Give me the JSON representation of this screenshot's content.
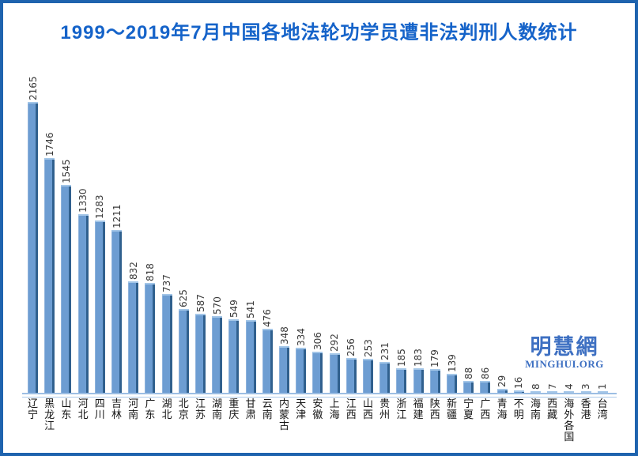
{
  "chart_data": {
    "type": "bar",
    "title": "1999～2019年7月中国各地法轮功学员遭非法判刑人数统计",
    "categories": [
      "辽宁",
      "黑龙江",
      "山东",
      "河北",
      "四川",
      "吉林",
      "河南",
      "广东",
      "湖北",
      "北京",
      "江苏",
      "湖南",
      "重庆",
      "甘肃",
      "云南",
      "内蒙古",
      "天津",
      "安徽",
      "上海",
      "江西",
      "山西",
      "贵州",
      "浙江",
      "福建",
      "陕西",
      "新疆",
      "宁夏",
      "广西",
      "青海",
      "不明",
      "海南",
      "西藏",
      "海外各国",
      "香港",
      "台湾"
    ],
    "values": [
      2165,
      1746,
      1545,
      1330,
      1283,
      1211,
      832,
      818,
      737,
      625,
      587,
      570,
      549,
      541,
      476,
      348,
      334,
      306,
      292,
      256,
      253,
      231,
      185,
      183,
      179,
      139,
      88,
      86,
      29,
      16,
      8,
      7,
      4,
      3,
      1
    ],
    "xlabel": "",
    "ylabel": "",
    "ylim": [
      0,
      2300
    ],
    "grid": false,
    "legend": "none",
    "data_labels": "rotated-90-above-bars",
    "x_tick_orientation": "vertical-stacked",
    "colors": {
      "bar_face": "#6D9DD2",
      "bar_side": "#30608E",
      "bar_top_highlight": "#A3C6E8",
      "bar_left_highlight": "#8FB3DC",
      "title": "#1563C9",
      "value_label": "#3A3A3A",
      "axis_label": "#151515",
      "floor_line": "#9CBEE3",
      "frame_border": "#1E63AE"
    }
  },
  "watermark": {
    "site_name": "明慧網",
    "site_url": "MINGHUI.ORG"
  }
}
